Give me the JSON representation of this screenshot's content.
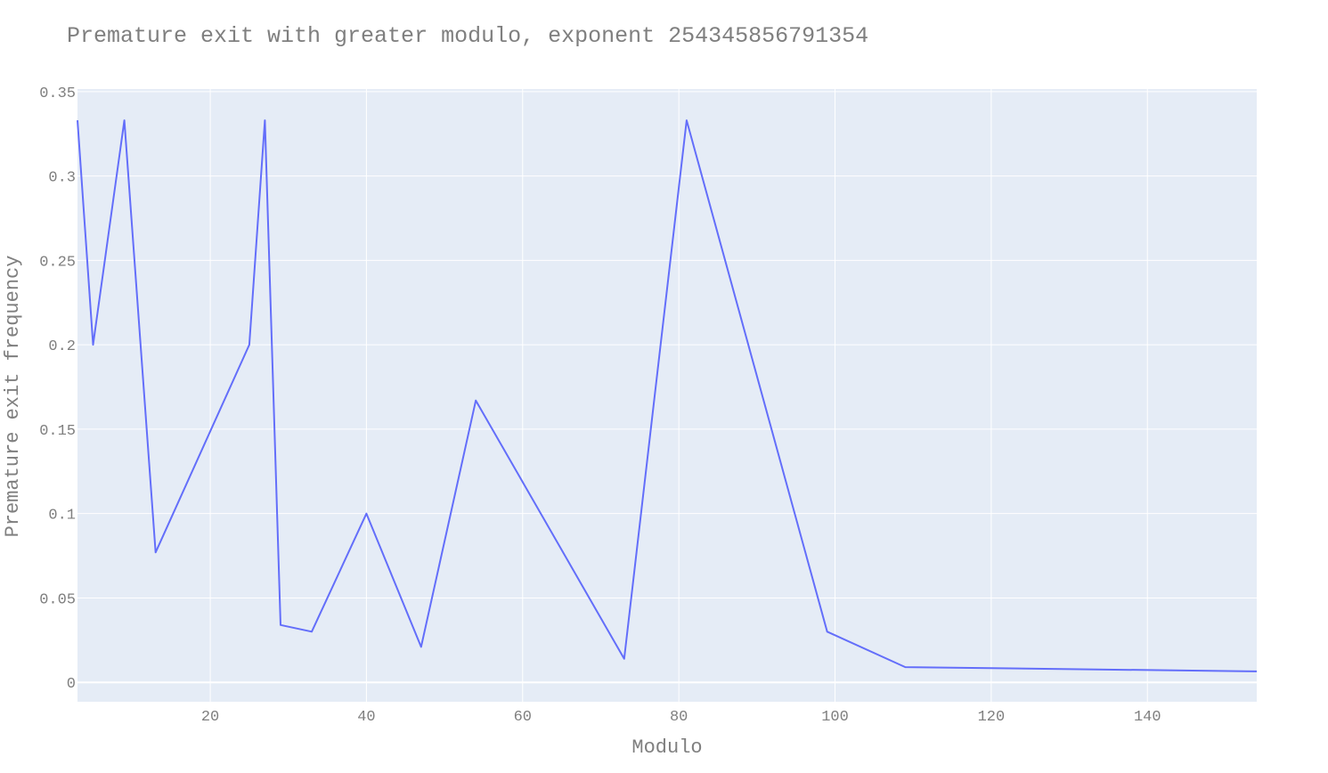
{
  "chart_data": {
    "type": "line",
    "title": "Premature exit with greater modulo, exponent 254345856791354",
    "xlabel": "Modulo",
    "ylabel": "Premature exit frequency",
    "xlim": [
      3,
      154
    ],
    "ylim": [
      -0.0115,
      0.3515
    ],
    "x_ticks": [
      20,
      40,
      60,
      80,
      100,
      120,
      140
    ],
    "y_ticks": [
      0,
      0.05,
      0.1,
      0.15,
      0.2,
      0.25,
      0.3,
      0.35
    ],
    "x_tick_labels": [
      "20",
      "40",
      "60",
      "80",
      "100",
      "120",
      "140"
    ],
    "y_tick_labels": [
      "0",
      "0.05",
      "0.1",
      "0.15",
      "0.2",
      "0.25",
      "0.3",
      "0.35"
    ],
    "grid": true,
    "line_color": "#636efa",
    "plot_bg": "#e5ecf6",
    "series": [
      {
        "x": [
          3,
          5,
          9,
          13,
          25,
          27,
          29,
          33,
          40,
          47,
          54,
          73,
          81,
          99,
          109,
          154
        ],
        "y": [
          0.333,
          0.2,
          0.333,
          0.077,
          0.2,
          0.333,
          0.034,
          0.03,
          0.1,
          0.021,
          0.167,
          0.014,
          0.333,
          0.03,
          0.009,
          0.0065
        ]
      }
    ]
  }
}
